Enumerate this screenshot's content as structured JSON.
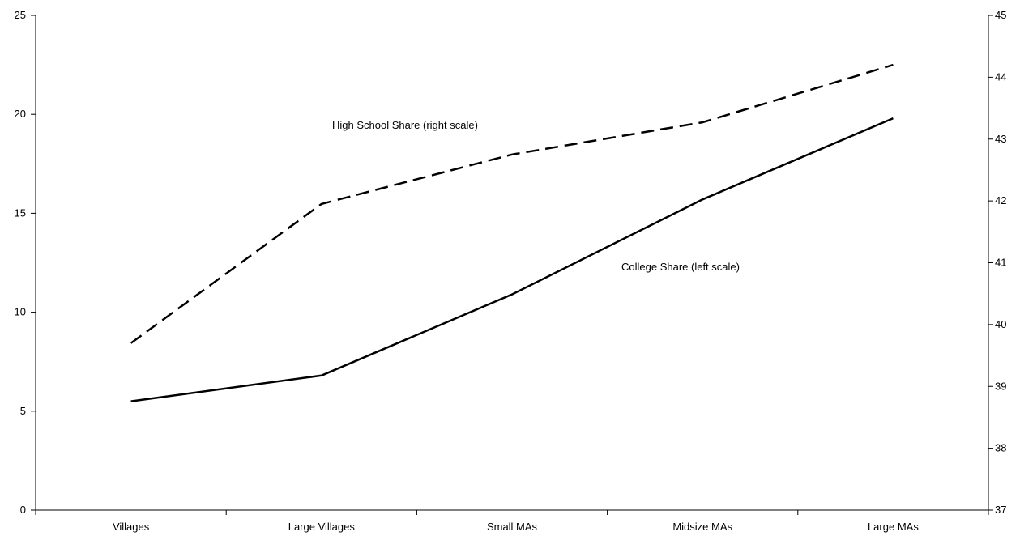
{
  "chart_data": {
    "type": "line",
    "categories": [
      "Villages",
      "Large Villages",
      "Small MAs",
      "Midsize MAs",
      "Large MAs"
    ],
    "series": [
      {
        "name": "College Share (left scale)",
        "axis": "left",
        "style": "solid",
        "values": [
          5.5,
          6.8,
          10.9,
          15.7,
          19.8
        ]
      },
      {
        "name": "High School Share (right scale)",
        "axis": "right",
        "style": "dashed",
        "values": [
          39.7,
          41.95,
          42.75,
          43.27,
          44.2
        ]
      }
    ],
    "y_left": {
      "min": 0,
      "max": 25,
      "ticks": [
        "0",
        "5",
        "10",
        "15",
        "20",
        "25"
      ]
    },
    "y_right": {
      "min": 37,
      "max": 45,
      "ticks": [
        "37",
        "38",
        "39",
        "40",
        "41",
        "42",
        "43",
        "44",
        "45"
      ]
    },
    "grid": false,
    "legend": "none",
    "annotations": {
      "high_school": "High School Share (right scale)",
      "college": "College Share (left scale)"
    }
  }
}
